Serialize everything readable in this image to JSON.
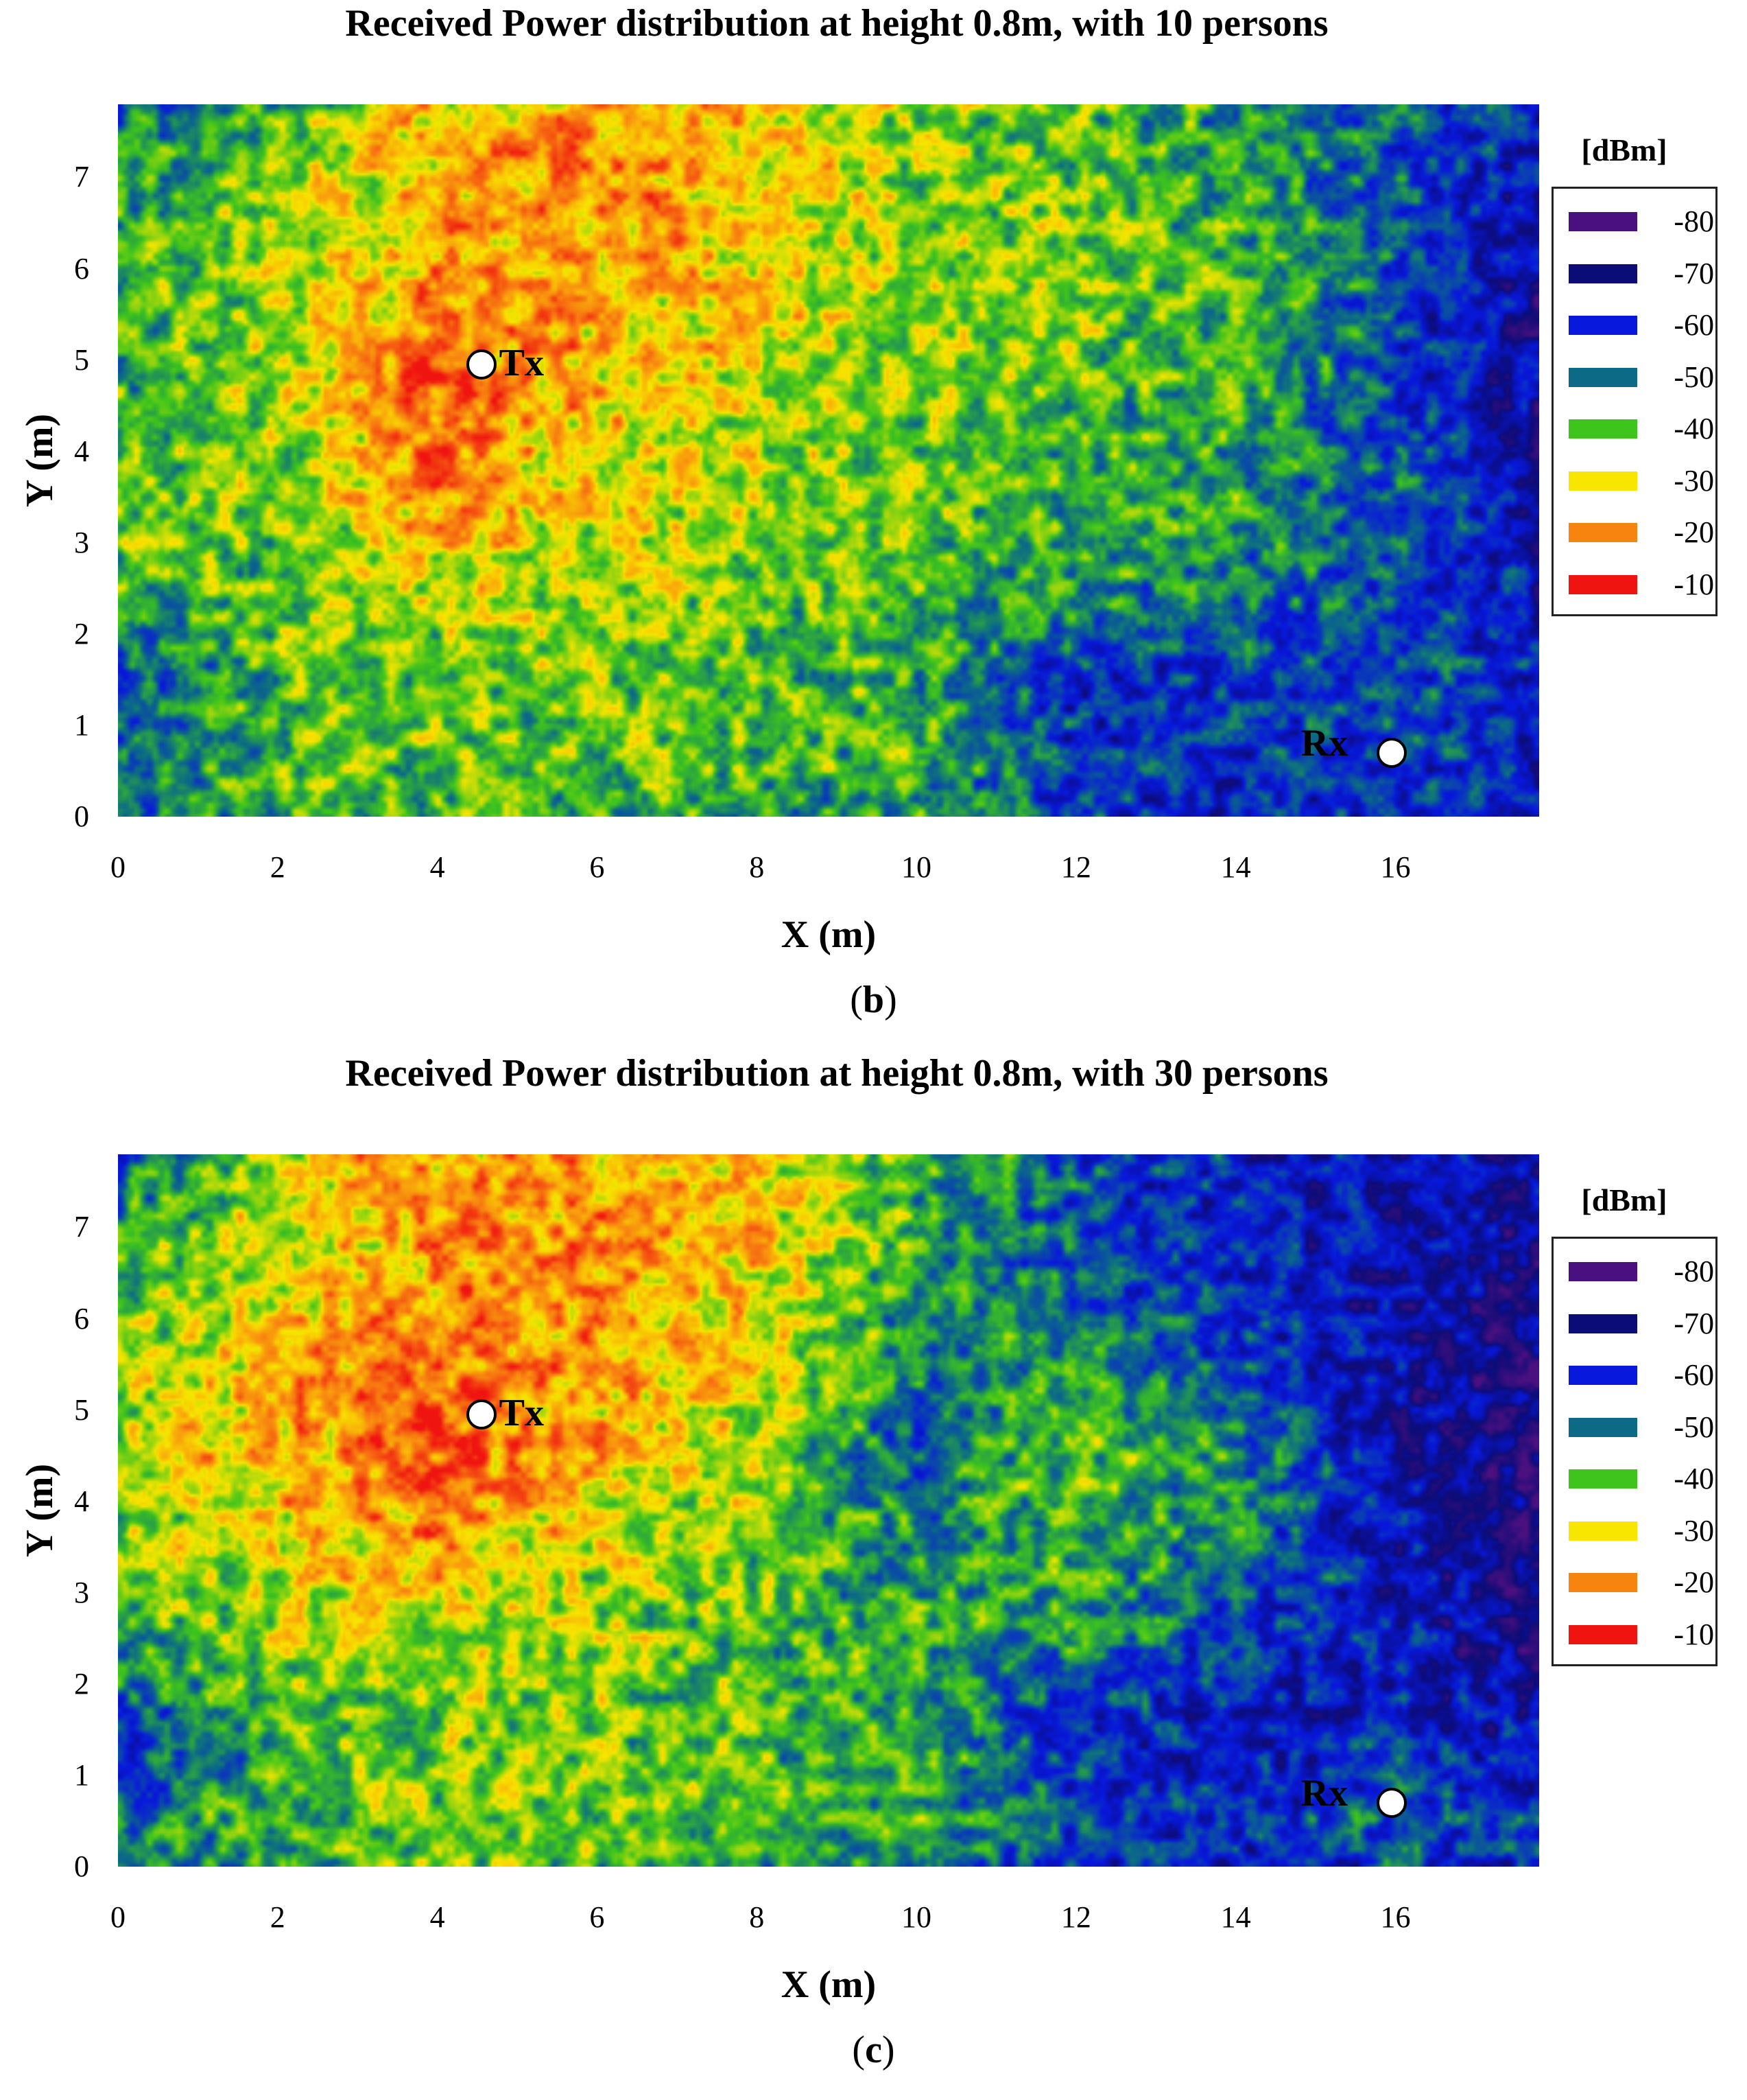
{
  "chart_data": [
    {
      "type": "heatmap",
      "panel_label": "b",
      "title": "Received Power distribution at height 0.8m, with 10 persons",
      "xlabel": "X (m)",
      "ylabel": "Y (m)",
      "xlim": [
        0,
        17.8
      ],
      "ylim": [
        0,
        7.8
      ],
      "x_ticks": [
        "0",
        "2",
        "4",
        "6",
        "8",
        "10",
        "12",
        "14",
        "16"
      ],
      "y_ticks": [
        "0",
        "1",
        "2",
        "3",
        "4",
        "5",
        "6",
        "7"
      ],
      "legend_title": "[dBm]",
      "legend": [
        {
          "label": "-80",
          "value": -80,
          "color": "#4b1080"
        },
        {
          "label": "-70",
          "value": -70,
          "color": "#0c0c78"
        },
        {
          "label": "-60",
          "value": -60,
          "color": "#0818dc"
        },
        {
          "label": "-50",
          "value": -50,
          "color": "#0c6a86"
        },
        {
          "label": "-40",
          "value": -40,
          "color": "#3ec41c"
        },
        {
          "label": "-30",
          "value": -30,
          "color": "#f8e600"
        },
        {
          "label": "-20",
          "value": -20,
          "color": "#f88410"
        },
        {
          "label": "-10",
          "value": -10,
          "color": "#f01410"
        }
      ],
      "markers": [
        {
          "label": "Tx",
          "x": 4.55,
          "y": 4.95
        },
        {
          "label": "Rx",
          "x": 15.95,
          "y": 0.7
        }
      ],
      "field_grid": {
        "x": [
          0,
          2,
          4,
          6,
          8,
          10,
          12,
          14,
          16,
          17.8
        ],
        "y": [
          7.8,
          6.5,
          5.5,
          4.5,
          3.5,
          2.5,
          1.5,
          0.5,
          0
        ],
        "values": [
          [
            -52,
            -40,
            -26,
            -22,
            -26,
            -36,
            -40,
            -46,
            -52,
            -58
          ],
          [
            -44,
            -36,
            -24,
            -22,
            -27,
            -36,
            -38,
            -42,
            -52,
            -68
          ],
          [
            -42,
            -34,
            -20,
            -24,
            -30,
            -36,
            -38,
            -40,
            -54,
            -70
          ],
          [
            -42,
            -36,
            -16,
            -27,
            -32,
            -38,
            -40,
            -42,
            -54,
            -68
          ],
          [
            -40,
            -36,
            -22,
            -30,
            -34,
            -38,
            -42,
            -44,
            -52,
            -66
          ],
          [
            -42,
            -38,
            -32,
            -34,
            -38,
            -40,
            -44,
            -48,
            -56,
            -62
          ],
          [
            -56,
            -40,
            -38,
            -38,
            -40,
            -42,
            -58,
            -56,
            -54,
            -58
          ],
          [
            -52,
            -40,
            -38,
            -40,
            -42,
            -42,
            -56,
            -58,
            -56,
            -60
          ],
          [
            -54,
            -42,
            -40,
            -42,
            -44,
            -44,
            -56,
            -60,
            -58,
            -60
          ]
        ]
      }
    },
    {
      "type": "heatmap",
      "panel_label": "c",
      "title": "Received Power distribution at height 0.8m, with 30 persons",
      "xlabel": "X (m)",
      "ylabel": "Y (m)",
      "xlim": [
        0,
        17.8
      ],
      "ylim": [
        0,
        7.8
      ],
      "x_ticks": [
        "0",
        "2",
        "4",
        "6",
        "8",
        "10",
        "12",
        "14",
        "16"
      ],
      "y_ticks": [
        "0",
        "1",
        "2",
        "3",
        "4",
        "5",
        "6",
        "7"
      ],
      "legend_title": "[dBm]",
      "legend": [
        {
          "label": "-80",
          "value": -80,
          "color": "#4b1080"
        },
        {
          "label": "-70",
          "value": -70,
          "color": "#0c0c78"
        },
        {
          "label": "-60",
          "value": -60,
          "color": "#0818dc"
        },
        {
          "label": "-50",
          "value": -50,
          "color": "#0c6a86"
        },
        {
          "label": "-40",
          "value": -40,
          "color": "#3ec41c"
        },
        {
          "label": "-30",
          "value": -30,
          "color": "#f8e600"
        },
        {
          "label": "-20",
          "value": -20,
          "color": "#f88410"
        },
        {
          "label": "-10",
          "value": -10,
          "color": "#f01410"
        }
      ],
      "markers": [
        {
          "label": "Tx",
          "x": 4.55,
          "y": 4.95
        },
        {
          "label": "Rx",
          "x": 15.95,
          "y": 0.7
        }
      ],
      "field_grid": {
        "x": [
          0,
          2,
          4,
          6,
          8,
          10,
          12,
          14,
          16,
          17.8
        ],
        "y": [
          7.8,
          6.5,
          5.5,
          4.5,
          3.5,
          2.5,
          1.5,
          0.5,
          0
        ],
        "values": [
          [
            -54,
            -30,
            -24,
            -22,
            -28,
            -40,
            -54,
            -60,
            -64,
            -66
          ],
          [
            -42,
            -32,
            -22,
            -22,
            -28,
            -44,
            -52,
            -60,
            -66,
            -70
          ],
          [
            -36,
            -26,
            -18,
            -24,
            -30,
            -50,
            -44,
            -54,
            -66,
            -72
          ],
          [
            -34,
            -24,
            -16,
            -26,
            -34,
            -52,
            -38,
            -46,
            -64,
            -74
          ],
          [
            -38,
            -32,
            -22,
            -32,
            -38,
            -46,
            -40,
            -48,
            -62,
            -74
          ],
          [
            -42,
            -36,
            -34,
            -36,
            -40,
            -44,
            -46,
            -56,
            -62,
            -70
          ],
          [
            -58,
            -42,
            -36,
            -38,
            -40,
            -42,
            -58,
            -62,
            -60,
            -62
          ],
          [
            -48,
            -40,
            -36,
            -38,
            -40,
            -42,
            -56,
            -60,
            -52,
            -58
          ],
          [
            -52,
            -42,
            -38,
            -40,
            -44,
            -46,
            -60,
            -62,
            -56,
            -60
          ]
        ]
      }
    }
  ]
}
